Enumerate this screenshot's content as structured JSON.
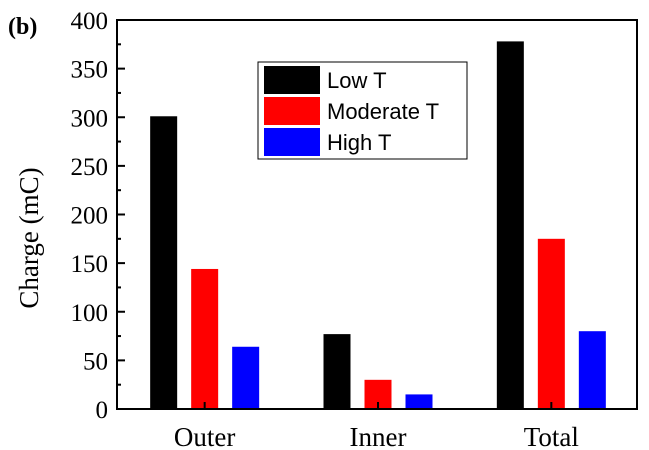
{
  "panel_label": "(b)",
  "chart_data": {
    "type": "bar",
    "title": "",
    "xlabel": "",
    "ylabel": "Charge (mC)",
    "categories": [
      "Outer",
      "Inner",
      "Total"
    ],
    "series": [
      {
        "name": "Low T",
        "color": "#000000",
        "values": [
          301,
          77,
          378
        ]
      },
      {
        "name": "Moderate T",
        "color": "#ff0000",
        "values": [
          144,
          30,
          175
        ]
      },
      {
        "name": "High T",
        "color": "#0000ff",
        "values": [
          64,
          15,
          80
        ]
      }
    ],
    "ylim": [
      0,
      400
    ],
    "yticks": [
      "0",
      "50",
      "100",
      "150",
      "200",
      "250",
      "300",
      "350",
      "400"
    ],
    "grid": false,
    "legend_position": "top-center"
  }
}
